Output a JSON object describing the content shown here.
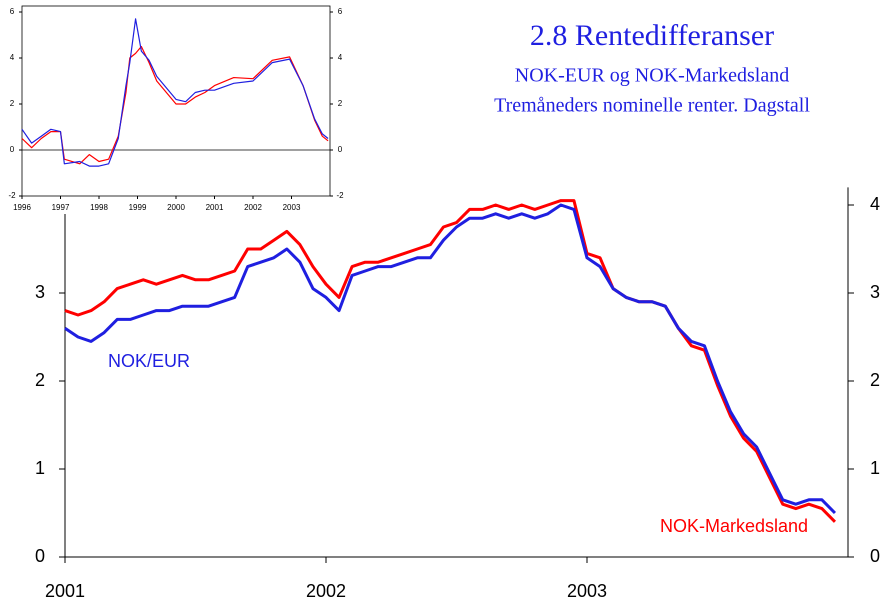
{
  "chart_data": [
    {
      "type": "line",
      "title": "2.8 Rentedifferanser",
      "subtitle": [
        "NOK-EUR og NOK-Markedsland",
        "Tremåneders nominelle renter. Dagstall"
      ],
      "x": [
        2001.0,
        2001.05,
        2001.1,
        2001.15,
        2001.2,
        2001.25,
        2001.3,
        2001.35,
        2001.4,
        2001.45,
        2001.5,
        2001.55,
        2001.6,
        2001.65,
        2001.7,
        2001.75,
        2001.8,
        2001.85,
        2001.9,
        2001.95,
        2002.0,
        2002.05,
        2002.1,
        2002.15,
        2002.2,
        2002.25,
        2002.3,
        2002.35,
        2002.4,
        2002.45,
        2002.5,
        2002.55,
        2002.6,
        2002.65,
        2002.7,
        2002.75,
        2002.8,
        2002.85,
        2002.9,
        2002.95,
        2003.0,
        2003.05,
        2003.1,
        2003.15,
        2003.2,
        2003.25,
        2003.3,
        2003.35,
        2003.4,
        2003.45,
        2003.5,
        2003.55,
        2003.6,
        2003.65,
        2003.7,
        2003.75,
        2003.8,
        2003.85,
        2003.9,
        2003.95
      ],
      "series": [
        {
          "name": "NOK-Markedsland",
          "color": "#ff0000",
          "values": [
            2.8,
            2.75,
            2.8,
            2.9,
            3.05,
            3.1,
            3.15,
            3.1,
            3.15,
            3.2,
            3.15,
            3.15,
            3.2,
            3.25,
            3.5,
            3.5,
            3.6,
            3.7,
            3.55,
            3.3,
            3.1,
            2.95,
            3.3,
            3.35,
            3.35,
            3.4,
            3.45,
            3.5,
            3.55,
            3.75,
            3.8,
            3.95,
            3.95,
            4.0,
            3.95,
            4.0,
            3.95,
            4.0,
            4.05,
            4.05,
            3.45,
            3.4,
            3.05,
            2.95,
            2.9,
            2.9,
            2.85,
            2.6,
            2.4,
            2.35,
            1.95,
            1.6,
            1.35,
            1.2,
            0.9,
            0.6,
            0.55,
            0.6,
            0.55,
            0.4
          ]
        },
        {
          "name": "NOK/EUR",
          "color": "#1f1fe0",
          "values": [
            2.6,
            2.5,
            2.45,
            2.55,
            2.7,
            2.7,
            2.75,
            2.8,
            2.8,
            2.85,
            2.85,
            2.85,
            2.9,
            2.95,
            3.3,
            3.35,
            3.4,
            3.5,
            3.35,
            3.05,
            2.95,
            2.8,
            3.2,
            3.25,
            3.3,
            3.3,
            3.35,
            3.4,
            3.4,
            3.6,
            3.75,
            3.85,
            3.85,
            3.9,
            3.85,
            3.9,
            3.85,
            3.9,
            4.0,
            3.95,
            3.4,
            3.3,
            3.05,
            2.95,
            2.9,
            2.9,
            2.85,
            2.6,
            2.45,
            2.4,
            2.0,
            1.65,
            1.4,
            1.25,
            0.95,
            0.65,
            0.6,
            0.65,
            0.65,
            0.5
          ]
        }
      ],
      "xlim": [
        2001,
        2004
      ],
      "xticks": [
        2001,
        2002,
        2003
      ],
      "ylim": [
        0,
        4.2
      ],
      "yticks": [
        0,
        1,
        2,
        3
      ],
      "y2lim": [
        0,
        4.2
      ],
      "y2ticks": [
        0,
        1,
        2,
        3,
        4
      ]
    },
    {
      "type": "line",
      "x": [
        1996,
        1996.25,
        1996.5,
        1996.75,
        1997,
        1997.1,
        1997.5,
        1997.75,
        1998,
        1998.25,
        1998.5,
        1998.7,
        1998.8,
        1998.95,
        1999.1,
        1999.3,
        1999.5,
        1999.75,
        2000,
        2000.25,
        2000.5,
        2000.75,
        2001,
        2001.5,
        2002,
        2002.5,
        2002.95,
        2003.3,
        2003.6,
        2003.8,
        2003.95
      ],
      "series": [
        {
          "color": "#ff0000",
          "values": [
            0.5,
            0.1,
            0.5,
            0.8,
            0.8,
            -0.4,
            -0.6,
            -0.2,
            -0.5,
            -0.4,
            0.6,
            2.5,
            4.0,
            4.2,
            4.5,
            3.8,
            3.0,
            2.5,
            2.0,
            2.0,
            2.3,
            2.5,
            2.8,
            3.15,
            3.1,
            3.9,
            4.05,
            2.8,
            1.3,
            0.6,
            0.4
          ]
        },
        {
          "color": "#1f1fe0",
          "values": [
            0.9,
            0.3,
            0.6,
            0.9,
            0.8,
            -0.6,
            -0.5,
            -0.7,
            -0.7,
            -0.6,
            0.5,
            2.8,
            3.8,
            5.7,
            4.3,
            3.9,
            3.2,
            2.7,
            2.2,
            2.1,
            2.5,
            2.6,
            2.6,
            2.9,
            3.0,
            3.8,
            3.95,
            2.8,
            1.35,
            0.7,
            0.5
          ]
        }
      ],
      "xlim": [
        1996,
        2004
      ],
      "xticks": [
        1996,
        1997,
        1998,
        1999,
        2000,
        2001,
        2002,
        2003
      ],
      "ylim": [
        -2,
        6
      ],
      "yticks": [
        -2,
        0,
        2,
        4,
        6
      ],
      "y2lim": [
        -2,
        6
      ],
      "y2ticks": [
        -2,
        0,
        2,
        4,
        6
      ],
      "zero_line": true
    }
  ]
}
